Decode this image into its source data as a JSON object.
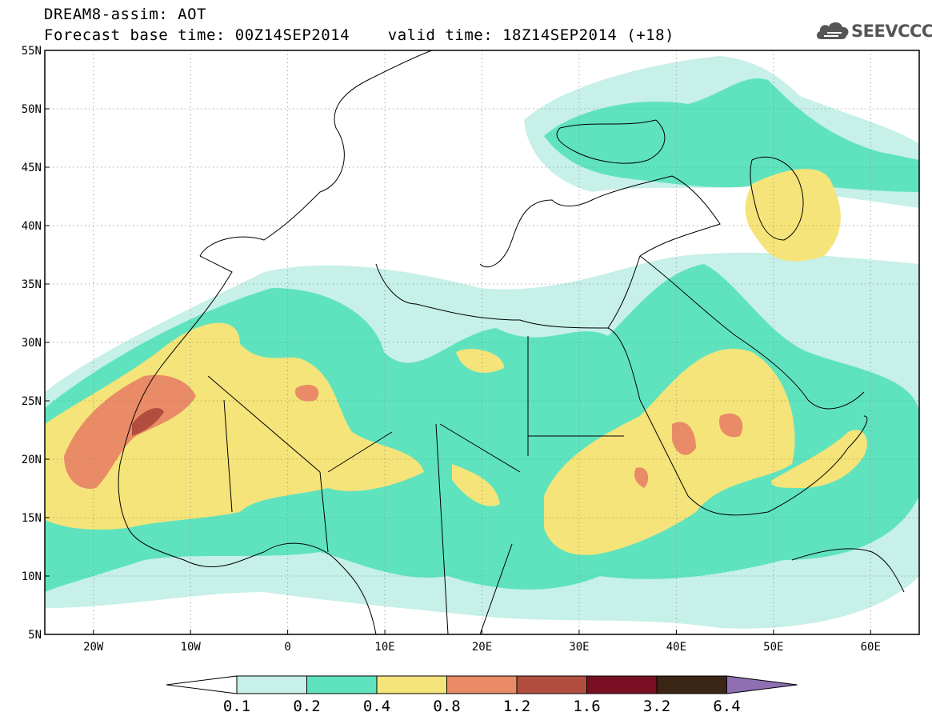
{
  "header": {
    "title_line1": "DREAM8-assim: AOT",
    "title_line2": "Forecast base time: 00Z14SEP2014    valid time: 18Z14SEP2014 (+18)",
    "logo_text": "SEEVCCC"
  },
  "map": {
    "lon_range": [
      -25,
      65
    ],
    "lat_range": [
      5,
      55
    ],
    "lon_ticks": [
      {
        "value": -20,
        "label": "20W"
      },
      {
        "value": -10,
        "label": "10W"
      },
      {
        "value": 0,
        "label": "0"
      },
      {
        "value": 10,
        "label": "10E"
      },
      {
        "value": 20,
        "label": "20E"
      },
      {
        "value": 30,
        "label": "30E"
      },
      {
        "value": 40,
        "label": "40E"
      },
      {
        "value": 50,
        "label": "50E"
      },
      {
        "value": 60,
        "label": "60E"
      }
    ],
    "lat_ticks": [
      {
        "value": 5,
        "label": "5N"
      },
      {
        "value": 10,
        "label": "10N"
      },
      {
        "value": 15,
        "label": "15N"
      },
      {
        "value": 20,
        "label": "20N"
      },
      {
        "value": 25,
        "label": "25N"
      },
      {
        "value": 30,
        "label": "30N"
      },
      {
        "value": 35,
        "label": "35N"
      },
      {
        "value": 40,
        "label": "40N"
      },
      {
        "value": 45,
        "label": "45N"
      },
      {
        "value": 50,
        "label": "50N"
      },
      {
        "value": 55,
        "label": "55N"
      }
    ],
    "grid": true
  },
  "colorbar": {
    "colors": [
      "#ffffff",
      "#c6f0e8",
      "#5fe3be",
      "#f5e47a",
      "#e98b66",
      "#b24e40",
      "#7a0f24",
      "#3b2514",
      "#8f6eb2"
    ],
    "labels": [
      "0.1",
      "0.2",
      "0.4",
      "0.8",
      "1.2",
      "1.6",
      "3.2",
      "6.4"
    ]
  }
}
